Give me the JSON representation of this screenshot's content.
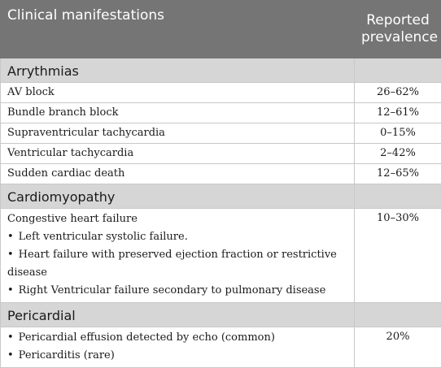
{
  "header": {
    "col1": "Clinical manifestations",
    "col2_line1": "Reported",
    "col2_line2": "prevalence"
  },
  "sections": [
    {
      "title": "Arrythmias",
      "rows": [
        {
          "label": "AV block",
          "value": "26–62%"
        },
        {
          "label": "Bundle branch block",
          "value": "12–61%"
        },
        {
          "label": "Supraventricular tachycardia",
          "value": "0–15%"
        },
        {
          "label": "Ventricular tachycardia",
          "value": "2–42%"
        },
        {
          "label": "Sudden cardiac death",
          "value": "12–65%"
        }
      ]
    },
    {
      "title": "Cardiomyopathy",
      "block": {
        "label": "Congestive heart failure",
        "bullets": [
          "Left ventricular systolic failure.",
          "Heart failure with preserved ejection fraction or restrictive disease",
          "Right Ventricular failure secondary to pulmonary disease"
        ],
        "value": "10–30%"
      }
    },
    {
      "title": "Pericardial",
      "block": {
        "bullets": [
          "Pericardial effusion detected by echo (common)",
          "Pericarditis (rare)"
        ],
        "value": "20%"
      }
    }
  ]
}
